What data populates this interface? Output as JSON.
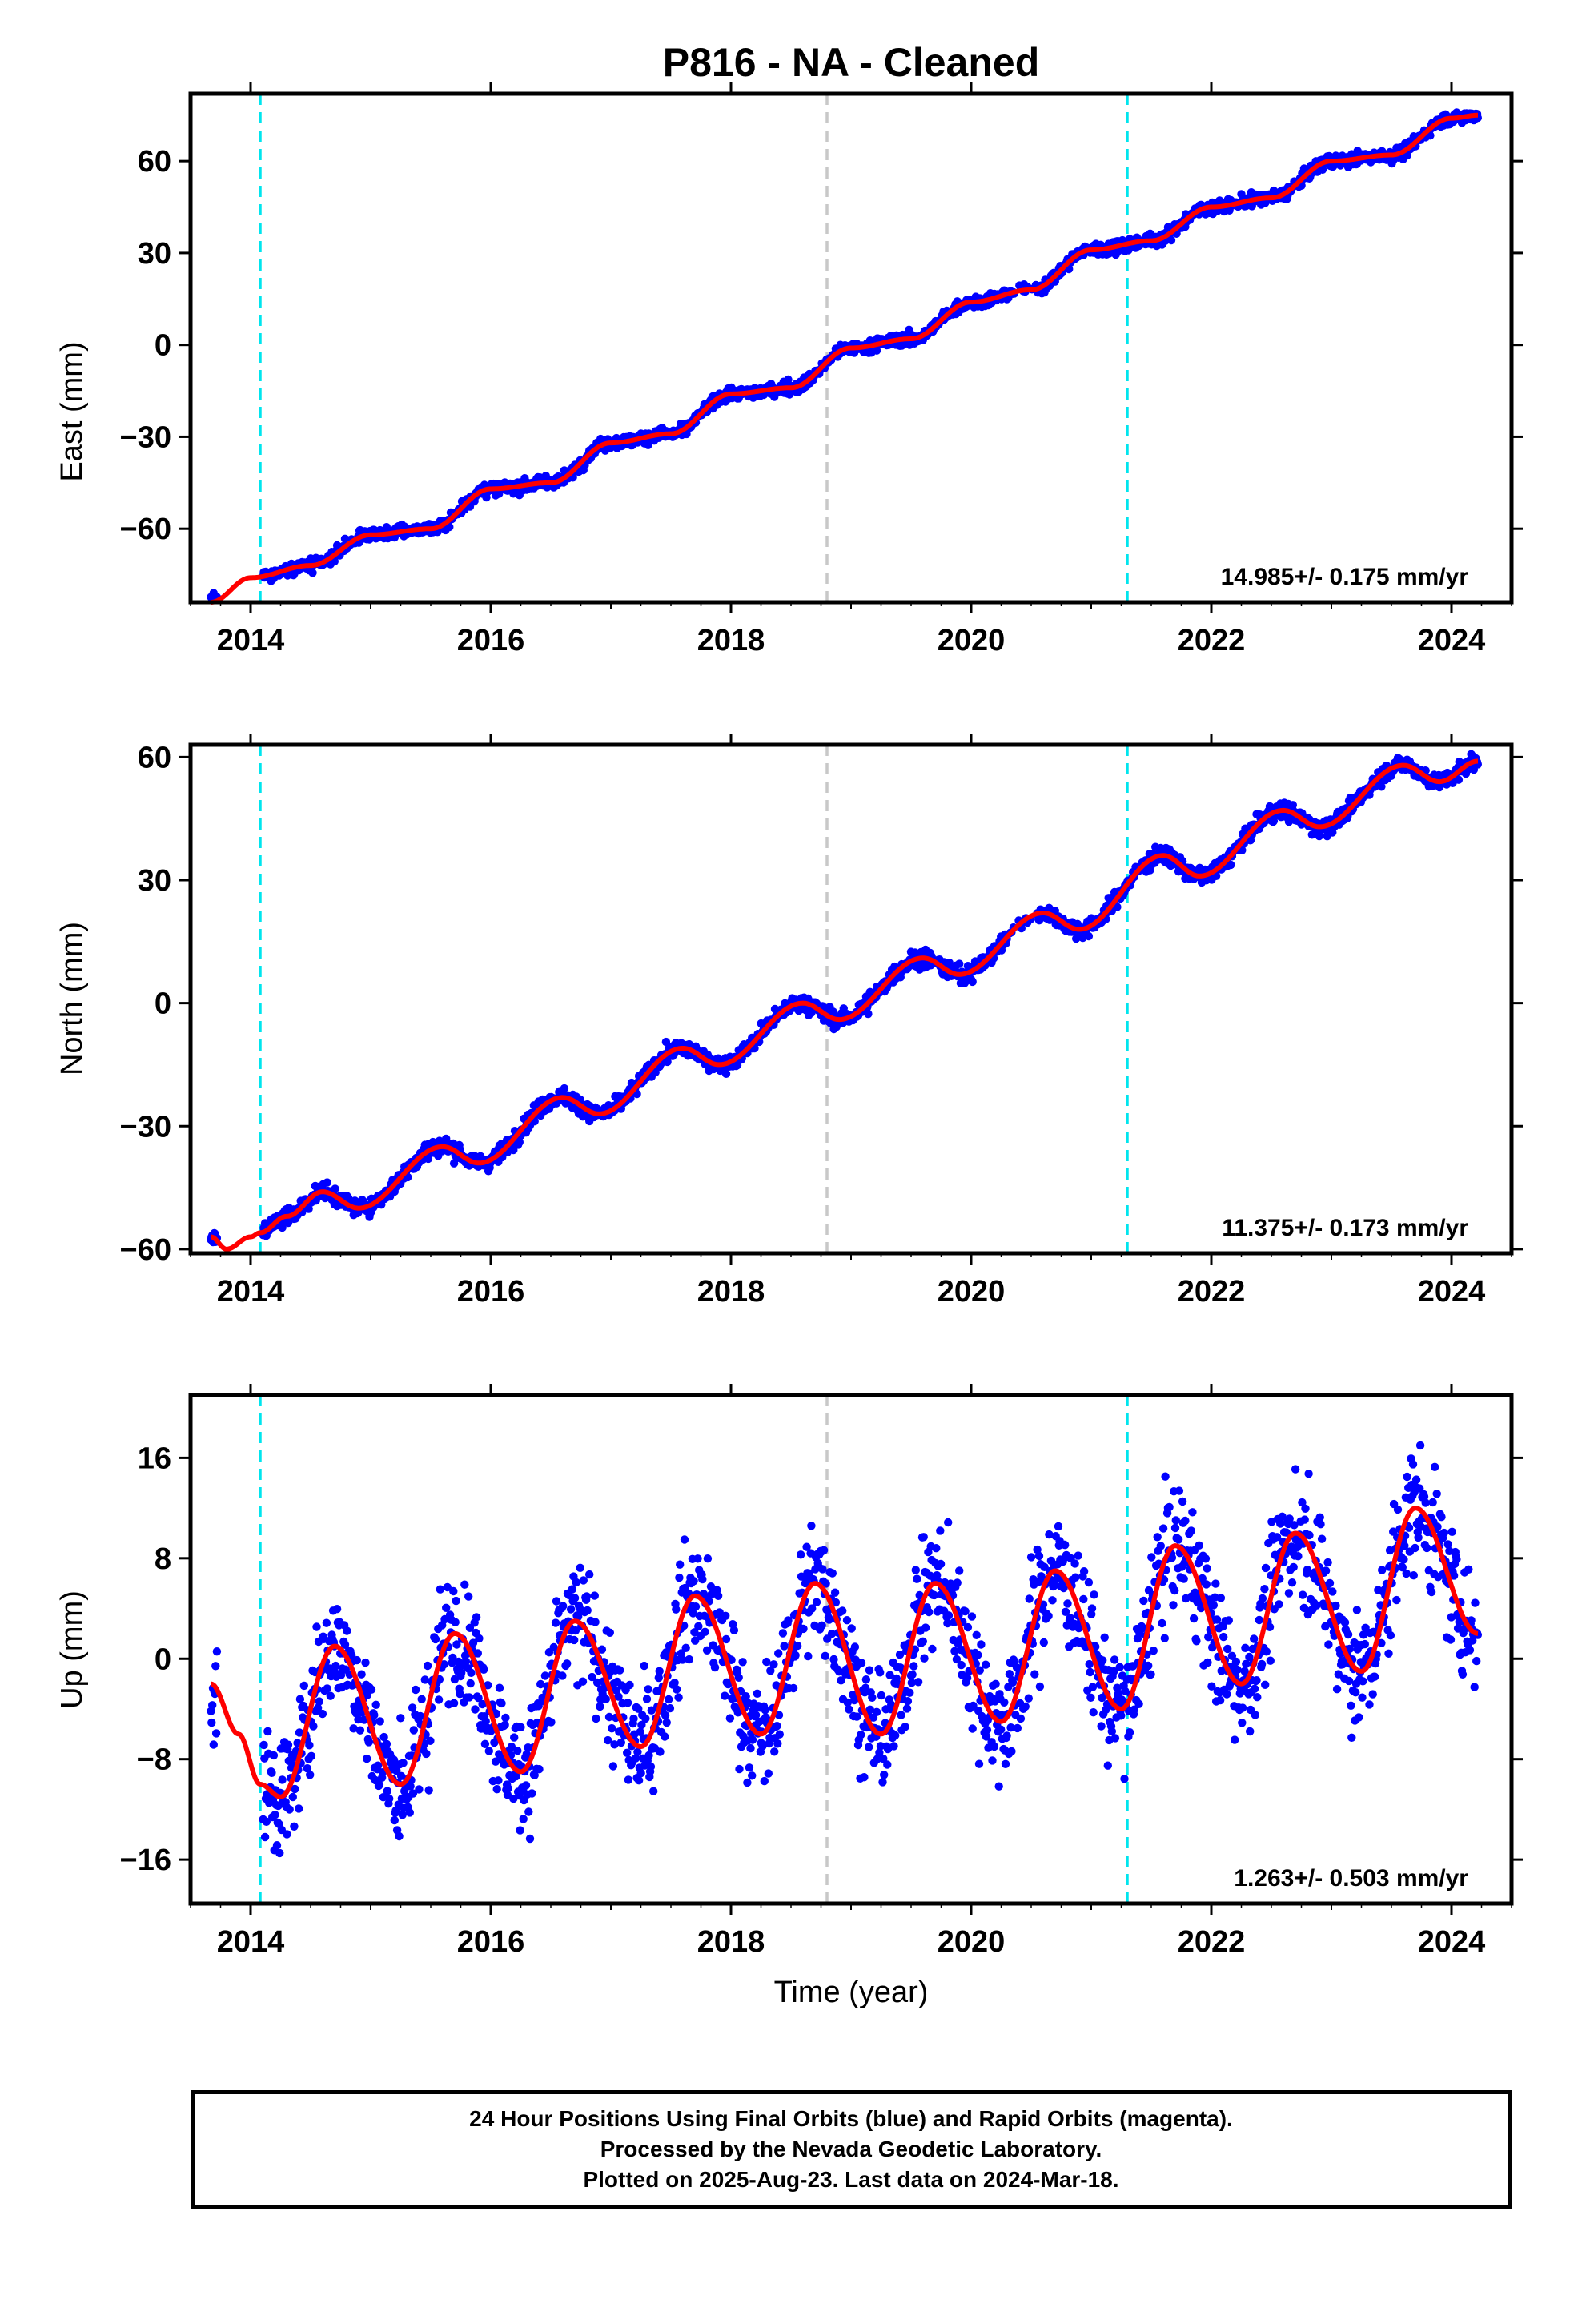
{
  "title": "P816  - NA - Cleaned",
  "x_axis": {
    "label": "Time (year)",
    "range": [
      2013.5,
      2024.5
    ],
    "ticks": [
      2014,
      2016,
      2018,
      2020,
      2022,
      2024
    ],
    "tick_labels": [
      "2014",
      "2016",
      "2018",
      "2020",
      "2022",
      "2024"
    ]
  },
  "colors": {
    "data": "#0000ff",
    "model": "#ff0000",
    "equipment_change": "#00e5ee",
    "gray_event": "#c8c8c8"
  },
  "vertical_markers": [
    {
      "year": 2014.08,
      "color": "cyan"
    },
    {
      "year": 2018.8,
      "color": "gray"
    },
    {
      "year": 2021.3,
      "color": "cyan"
    }
  ],
  "chart_data": [
    {
      "type": "scatter",
      "panel": "East",
      "ylabel": "East (mm)",
      "ylim": [
        -84,
        82
      ],
      "yticks": [
        -60,
        -30,
        0,
        30,
        60
      ],
      "ytick_labels": [
        "−60",
        "−30",
        "0",
        "30",
        "60"
      ],
      "rate_label": "14.985+/- 0.175 mm/yr",
      "trend": {
        "x": [
          2013.67,
          2024.22
        ],
        "y": [
          -82,
          75
        ],
        "rate_mm_per_yr": 14.985
      },
      "series": [
        {
          "kind": "model",
          "x": [
            2013.67,
            2014.0,
            2014.5,
            2015.0,
            2015.5,
            2016.0,
            2016.5,
            2017.0,
            2017.5,
            2018.0,
            2018.5,
            2019.0,
            2019.5,
            2020.0,
            2020.5,
            2021.0,
            2021.5,
            2022.0,
            2022.5,
            2023.0,
            2023.5,
            2024.0,
            2024.22
          ],
          "y": [
            -84,
            -76,
            -72,
            -62,
            -60,
            -47,
            -45,
            -32,
            -29,
            -16,
            -14,
            -1,
            2,
            14,
            18,
            31,
            34,
            45,
            48,
            60,
            62,
            74,
            75
          ]
        }
      ]
    },
    {
      "type": "scatter",
      "panel": "North",
      "ylabel": "North (mm)",
      "ylim": [
        -61,
        63
      ],
      "yticks": [
        -60,
        -30,
        0,
        30,
        60
      ],
      "ytick_labels": [
        "−60",
        "−30",
        "0",
        "30",
        "60"
      ],
      "rate_label": "11.375+/- 0.173 mm/yr",
      "series": [
        {
          "kind": "model",
          "x": [
            2013.67,
            2013.8,
            2014.0,
            2014.08,
            2014.3,
            2014.6,
            2014.9,
            2015.6,
            2015.9,
            2016.6,
            2016.9,
            2017.6,
            2017.9,
            2018.6,
            2018.9,
            2019.6,
            2019.9,
            2020.6,
            2020.9,
            2021.6,
            2021.9,
            2022.6,
            2022.9,
            2023.6,
            2023.9,
            2024.22
          ],
          "y": [
            -57,
            -60,
            -57,
            -56,
            -52,
            -46,
            -50,
            -35,
            -39,
            -23,
            -27,
            -11,
            -15,
            0,
            -4,
            11,
            7,
            22,
            18,
            36,
            31,
            47,
            43,
            58,
            54,
            59
          ]
        }
      ]
    },
    {
      "type": "scatter",
      "panel": "Up",
      "ylabel": "Up (mm)",
      "ylim": [
        -19.5,
        21
      ],
      "yticks": [
        -16,
        -8,
        0,
        8,
        16
      ],
      "ytick_labels": [
        "−16",
        "−8",
        "0",
        "8",
        "16"
      ],
      "rate_label": "1.263+/- 0.503 mm/yr",
      "series": [
        {
          "kind": "model",
          "seasonal_fit": {
            "t0": 2014.2,
            "amplitude": 6.2,
            "period_years": 1.0,
            "rate_mm_per_yr": 1.263,
            "offset": -5.0
          },
          "x": [
            2013.67,
            2013.9,
            2014.08,
            2014.25,
            2014.7,
            2015.25,
            2015.7,
            2016.25,
            2016.7,
            2017.25,
            2017.7,
            2018.25,
            2018.7,
            2019.25,
            2019.7,
            2020.25,
            2020.7,
            2021.25,
            2021.7,
            2022.25,
            2022.7,
            2023.25,
            2023.7,
            2024.22
          ],
          "y": [
            -2,
            -6,
            -10,
            -11,
            1,
            -10,
            2,
            -9,
            3,
            -7,
            5,
            -6,
            6,
            -6,
            6,
            -5,
            7,
            -4,
            9,
            -2,
            10,
            -1,
            12,
            2
          ]
        }
      ]
    }
  ],
  "footer": {
    "line1": "24 Hour Positions Using Final Orbits (blue) and Rapid Orbits (magenta).",
    "line2": "Processed by the Nevada Geodetic Laboratory.",
    "line3": "Plotted on 2025-Aug-23. Last data on 2024-Mar-18."
  }
}
